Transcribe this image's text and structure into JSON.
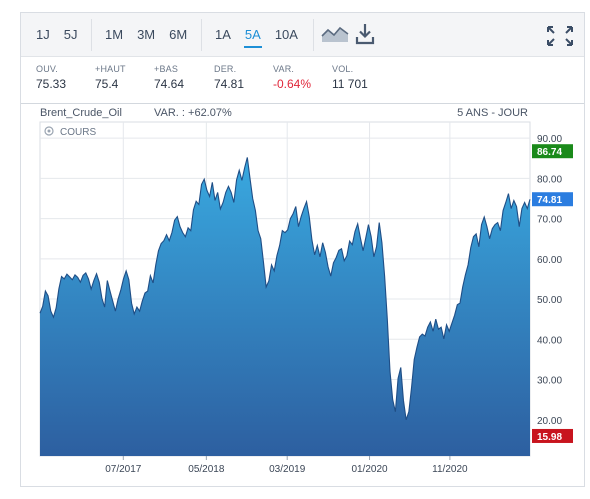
{
  "toolbar": {
    "periods_short": [
      "1J",
      "5J"
    ],
    "periods_months": [
      "1M",
      "3M",
      "6M"
    ],
    "periods_years": [
      "1A",
      "5A",
      "10A"
    ],
    "active_period": "5A",
    "icons": [
      "chart-type-icon",
      "download-icon",
      "fullscreen-icon"
    ]
  },
  "stats": [
    {
      "label": "OUV.",
      "value": "75.33"
    },
    {
      "label": "+HAUT",
      "value": "75.4"
    },
    {
      "label": "+BAS",
      "value": "74.64"
    },
    {
      "label": "DER.",
      "value": "74.81"
    },
    {
      "label": "VAR.",
      "value": "-0.64%"
    },
    {
      "label": "VOL.",
      "value": "11 701"
    }
  ],
  "chart_header": {
    "instrument": "Brent_Crude_Oil",
    "variation": "VAR. : +62.07%",
    "range_label": "5 ANS - JOUR",
    "series_toggle": "COURS"
  },
  "chart_data": {
    "type": "area",
    "x_tick_labels": [
      "07/2017",
      "05/2018",
      "03/2019",
      "01/2020",
      "11/2020"
    ],
    "y_ticks": [
      20,
      30,
      40,
      50,
      60,
      70,
      80,
      90
    ],
    "y_tick_labels": [
      "20.00",
      "30.00",
      "40.00",
      "50.00",
      "60.00",
      "70.00",
      "80.00",
      "90.00"
    ],
    "ylim": [
      11,
      94
    ],
    "grid": true,
    "markers": {
      "high": {
        "value": 86.74,
        "label": "86.74",
        "color": "#1a8a1a"
      },
      "last": {
        "value": 74.81,
        "label": "74.81",
        "color": "#2b7de0"
      },
      "low": {
        "value": 15.98,
        "label": "15.98",
        "color": "#c8141e"
      }
    },
    "colors": {
      "line": "#1f4e86",
      "fill_top": "#39a9e0",
      "fill_bottom": "#2d5fa0"
    },
    "series": [
      {
        "values": [
          46.5,
          48.2,
          52.0,
          50.8,
          47.0,
          45.5,
          47.8,
          52.5,
          55.6,
          55.0,
          56.2,
          55.5,
          54.8,
          56.0,
          55.4,
          54.2,
          55.9,
          56.5,
          55.0,
          52.5,
          54.6,
          56.3,
          54.2,
          50.2,
          48.0,
          54.6,
          52.0,
          49.5,
          47.0,
          50.0,
          52.2,
          55.0,
          57.0,
          54.8,
          49.0,
          46.3,
          48.0,
          47.0,
          49.5,
          51.5,
          52.0,
          55.8,
          54.0,
          58.5,
          62.0,
          63.8,
          64.5,
          66.0,
          64.5,
          66.5,
          69.6,
          70.5,
          68.0,
          66.5,
          65.5,
          67.7,
          67.0,
          72.2,
          74.3,
          73.5,
          78.5,
          79.8,
          77.0,
          75.5,
          79.0,
          74.5,
          76.5,
          72.4,
          74.0,
          76.5,
          78.0,
          76.5,
          74.0,
          79.6,
          82.0,
          79.5,
          82.6,
          85.2,
          80.0,
          75.0,
          72.0,
          67.0,
          65.0,
          59.2,
          53.0,
          54.5,
          58.5,
          57.0,
          60.8,
          63.3,
          67.0,
          66.5,
          67.2,
          70.0,
          71.2,
          73.0,
          68.0,
          70.5,
          72.5,
          74.2,
          70.5,
          64.7,
          61.0,
          63.3,
          60.5,
          64.0,
          61.6,
          58.0,
          55.7,
          59.0,
          60.3,
          62.1,
          62.5,
          59.5,
          60.8,
          64.4,
          63.5,
          66.8,
          68.7,
          65.2,
          62.0,
          65.2,
          68.5,
          65.5,
          60.5,
          63.0,
          69.0,
          64.0,
          55.7,
          45.0,
          32.0,
          25.0,
          22.0,
          30.3,
          33.0,
          24.8,
          20.0,
          22.0,
          28.0,
          35.0,
          38.0,
          40.6,
          41.3,
          40.8,
          43.0,
          44.3,
          42.0,
          45.0,
          42.5,
          43.0,
          40.1,
          43.6,
          42.0,
          44.0,
          46.0,
          48.6,
          49.0,
          53.0,
          56.0,
          58.5,
          62.8,
          65.5,
          66.2,
          63.0,
          68.5,
          70.4,
          68.0,
          65.0,
          67.5,
          68.5,
          69.0,
          67.0,
          72.0,
          74.0,
          76.2,
          72.5,
          74.5,
          73.0,
          68.0,
          72.5,
          74.0,
          72.5,
          74.8
        ]
      }
    ]
  }
}
